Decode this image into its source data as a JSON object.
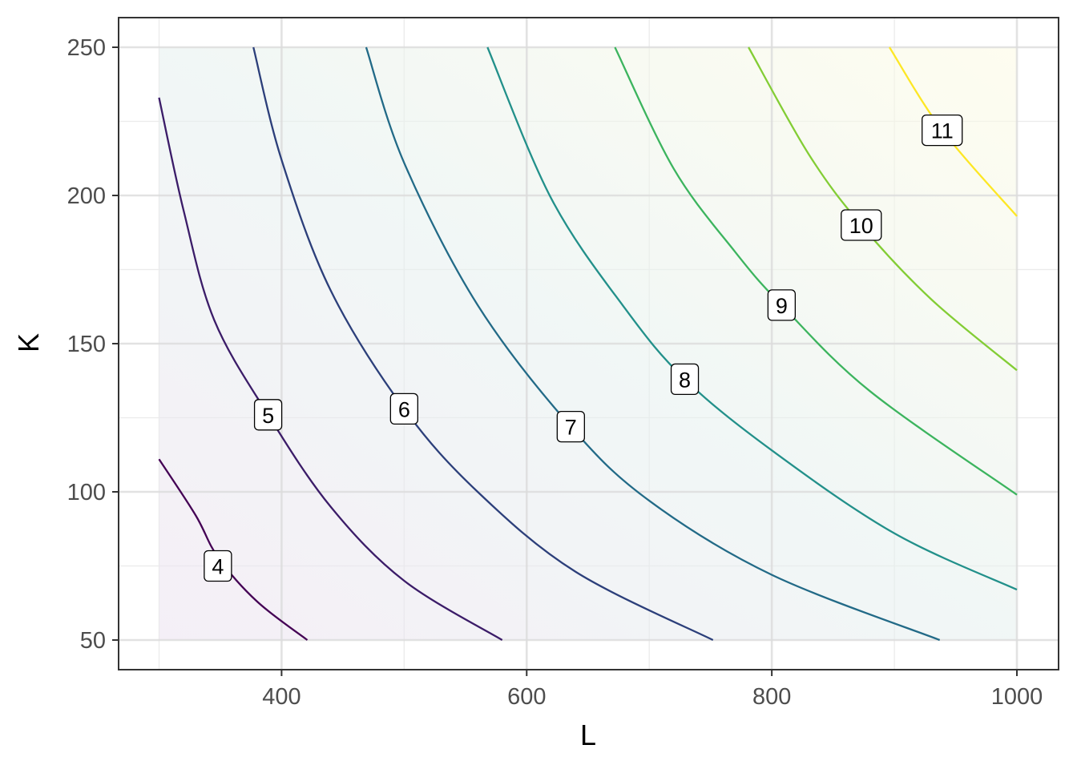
{
  "chart_data": {
    "type": "contour",
    "title": "",
    "xlabel": "L",
    "ylabel": "K",
    "xlim": [
      267,
      1034
    ],
    "ylim": [
      40,
      260
    ],
    "x_range": [
      300,
      1000
    ],
    "y_range": [
      50,
      250
    ],
    "xticks": [
      400,
      600,
      800,
      1000
    ],
    "xtick_labels": [
      "400",
      "600",
      "800",
      "1000"
    ],
    "yticks": [
      50,
      100,
      150,
      200,
      250
    ],
    "ytick_labels": [
      "50",
      "100",
      "150",
      "200",
      "250"
    ],
    "x_minor_ticks": [
      300,
      500,
      700,
      900
    ],
    "y_minor_ticks": [
      75,
      125,
      175,
      225
    ],
    "grid": true,
    "legend": "none",
    "fill_color_low": "#ece2f0",
    "fill_color_high": "#fdfbe3",
    "contours": [
      {
        "level": 4,
        "label": "4",
        "color": "#440154",
        "label_at": [
          348,
          75
        ],
        "points": [
          [
            300,
            111
          ],
          [
            330,
            92
          ],
          [
            348,
            78
          ],
          [
            380,
            63
          ],
          [
            421,
            50
          ]
        ]
      },
      {
        "level": 5,
        "label": "5",
        "color": "#3b1c68",
        "label_at": [
          389,
          126
        ],
        "points": [
          [
            300,
            233
          ],
          [
            320,
            195
          ],
          [
            345,
            158
          ],
          [
            389,
            126
          ],
          [
            440,
            95
          ],
          [
            500,
            70
          ],
          [
            580,
            50
          ]
        ]
      },
      {
        "level": 6,
        "label": "6",
        "color": "#2c3f7a",
        "label_at": [
          500,
          128
        ],
        "points": [
          [
            377,
            250
          ],
          [
            400,
            212
          ],
          [
            440,
            168
          ],
          [
            500,
            128
          ],
          [
            560,
            100
          ],
          [
            640,
            73
          ],
          [
            752,
            50
          ]
        ]
      },
      {
        "level": 7,
        "label": "7",
        "color": "#226a87",
        "label_at": [
          636,
          122
        ],
        "points": [
          [
            469,
            250
          ],
          [
            500,
            211
          ],
          [
            560,
            163
          ],
          [
            636,
            122
          ],
          [
            700,
            97
          ],
          [
            800,
            72
          ],
          [
            937,
            50
          ]
        ]
      },
      {
        "level": 8,
        "label": "8",
        "color": "#22908a",
        "label_at": [
          729,
          138
        ],
        "points": [
          [
            568,
            250
          ],
          [
            620,
            199
          ],
          [
            680,
            162
          ],
          [
            729,
            138
          ],
          [
            800,
            114
          ],
          [
            900,
            86
          ],
          [
            1000,
            67
          ]
        ]
      },
      {
        "level": 9,
        "label": "9",
        "color": "#3cb45e",
        "label_at": [
          808,
          163
        ],
        "points": [
          [
            672,
            250
          ],
          [
            720,
            209
          ],
          [
            770,
            181
          ],
          [
            808,
            163
          ],
          [
            880,
            134
          ],
          [
            1000,
            99
          ]
        ]
      },
      {
        "level": 10,
        "label": "10",
        "color": "#83cd35",
        "label_at": [
          873,
          190
        ],
        "points": [
          [
            781,
            250
          ],
          [
            830,
            214
          ],
          [
            873,
            190
          ],
          [
            930,
            165
          ],
          [
            1000,
            141
          ]
        ]
      },
      {
        "level": 11,
        "label": "11",
        "color": "#fde725",
        "label_at": [
          939,
          222
        ],
        "points": [
          [
            896,
            250
          ],
          [
            939,
            222
          ],
          [
            1000,
            193
          ]
        ]
      }
    ]
  }
}
